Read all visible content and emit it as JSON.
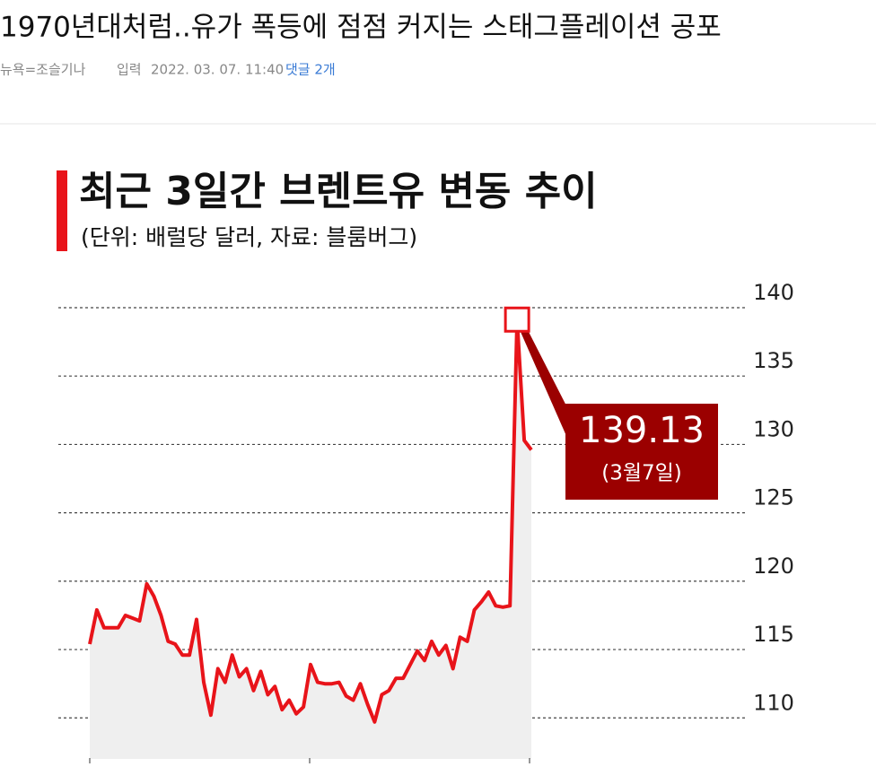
{
  "header": {
    "title": "1970년대처럼..유가 폭등에 점점 커지는 스태그플레이션 공포",
    "author": "뉴욕=조슬기나",
    "date_label": "입력",
    "date": "2022. 03. 07. 11:40",
    "comments": "댓글 2개"
  },
  "chart_data": {
    "type": "line",
    "title": "최근 3일간 브렌트유 변동 추이",
    "subtitle": "(단위: 배럴당 달러, 자료: 블룸버그)",
    "values": [
      115.4,
      117.9,
      116.6,
      116.6,
      116.6,
      117.5,
      117.3,
      117.1,
      119.8,
      118.9,
      117.5,
      115.6,
      115.4,
      114.6,
      114.6,
      117.2,
      112.6,
      110.2,
      113.6,
      112.6,
      114.6,
      113.0,
      113.6,
      112.0,
      113.4,
      111.7,
      112.3,
      110.6,
      111.3,
      110.3,
      110.8,
      113.9,
      112.6,
      112.5,
      112.5,
      112.6,
      111.6,
      111.3,
      112.5,
      111.0,
      109.7,
      111.7,
      112.0,
      112.9,
      112.9,
      113.9,
      114.9,
      114.2,
      115.6,
      114.6,
      115.3,
      113.6,
      115.9,
      115.6,
      117.9,
      118.5,
      119.2,
      118.2,
      118.1,
      118.2,
      139.13,
      130.3,
      129.6
    ],
    "color": "#e8141a",
    "annotation": "(3월7일)",
    "ylim": [
      107,
      140
    ],
    "yticks": [
      110,
      115,
      120,
      125,
      130,
      135,
      140
    ],
    "grid": true
  }
}
